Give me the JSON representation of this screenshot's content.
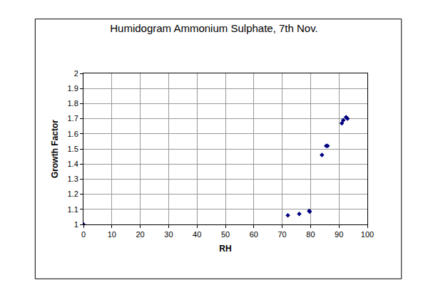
{
  "chart_data": {
    "type": "scatter",
    "title": "Humidogram Ammonium Sulphate, 7th Nov.",
    "x_label": "RH",
    "y_label": "Growth Factor",
    "x": [
      0,
      72,
      76,
      79.5,
      79.7,
      84,
      85.5,
      86,
      91,
      91.5,
      92.5,
      93
    ],
    "values": [
      1.0,
      1.06,
      1.07,
      1.09,
      1.085,
      1.46,
      1.52,
      1.52,
      1.67,
      1.69,
      1.71,
      1.7
    ],
    "color": "#000080",
    "marker": "diamond",
    "xlim": [
      0,
      100
    ],
    "xticks": [
      0,
      10,
      20,
      30,
      40,
      50,
      60,
      70,
      80,
      90,
      100
    ],
    "ylim": [
      1,
      2
    ],
    "yticks": [
      1,
      1.1,
      1.2,
      1.3,
      1.4,
      1.5,
      1.6,
      1.7,
      1.8,
      1.9,
      2
    ],
    "grid": true
  }
}
